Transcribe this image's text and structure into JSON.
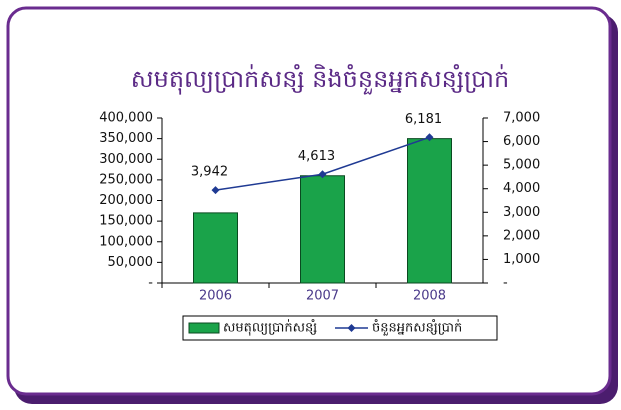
{
  "chart_data": {
    "type": "bar",
    "title": "សមតុល្យប្រាក់សន្សំ និងចំនួនអ្នកសន្សំប្រាក់",
    "categories": [
      "2006",
      "2007",
      "2008"
    ],
    "series": [
      {
        "name": "សមតុល្យប្រាក់សន្សំ",
        "type": "bar",
        "color": "#1aa34a",
        "values": [
          170000,
          260000,
          350000
        ]
      },
      {
        "name": "ចំនួនអ្នកសន្សំប្រាក់",
        "type": "line",
        "axis": "y2",
        "color": "#1f3a93",
        "values": [
          3942,
          4613,
          6181
        ],
        "value_labels": [
          "3,942",
          "4,613",
          "6,181"
        ]
      }
    ],
    "ylim": [
      0,
      400000
    ],
    "yticks": [
      {
        "value": 0,
        "label": "-"
      },
      {
        "value": 50000,
        "label": "50,000"
      },
      {
        "value": 100000,
        "label": "100,000"
      },
      {
        "value": 150000,
        "label": "150,000"
      },
      {
        "value": 200000,
        "label": "200,000"
      },
      {
        "value": 250000,
        "label": "250,000"
      },
      {
        "value": 300000,
        "label": "300,000"
      },
      {
        "value": 350000,
        "label": "350,000"
      },
      {
        "value": 400000,
        "label": "400,000"
      }
    ],
    "y2lim": [
      0,
      7000
    ],
    "y2ticks": [
      {
        "value": 0,
        "label": "-"
      },
      {
        "value": 1000,
        "label": "1,000"
      },
      {
        "value": 2000,
        "label": "2,000"
      },
      {
        "value": 3000,
        "label": "3,000"
      },
      {
        "value": 4000,
        "label": "4,000"
      },
      {
        "value": 5000,
        "label": "5,000"
      },
      {
        "value": 6000,
        "label": "6,000"
      },
      {
        "value": 7000,
        "label": "7,000"
      }
    ],
    "legend": "bottom"
  }
}
